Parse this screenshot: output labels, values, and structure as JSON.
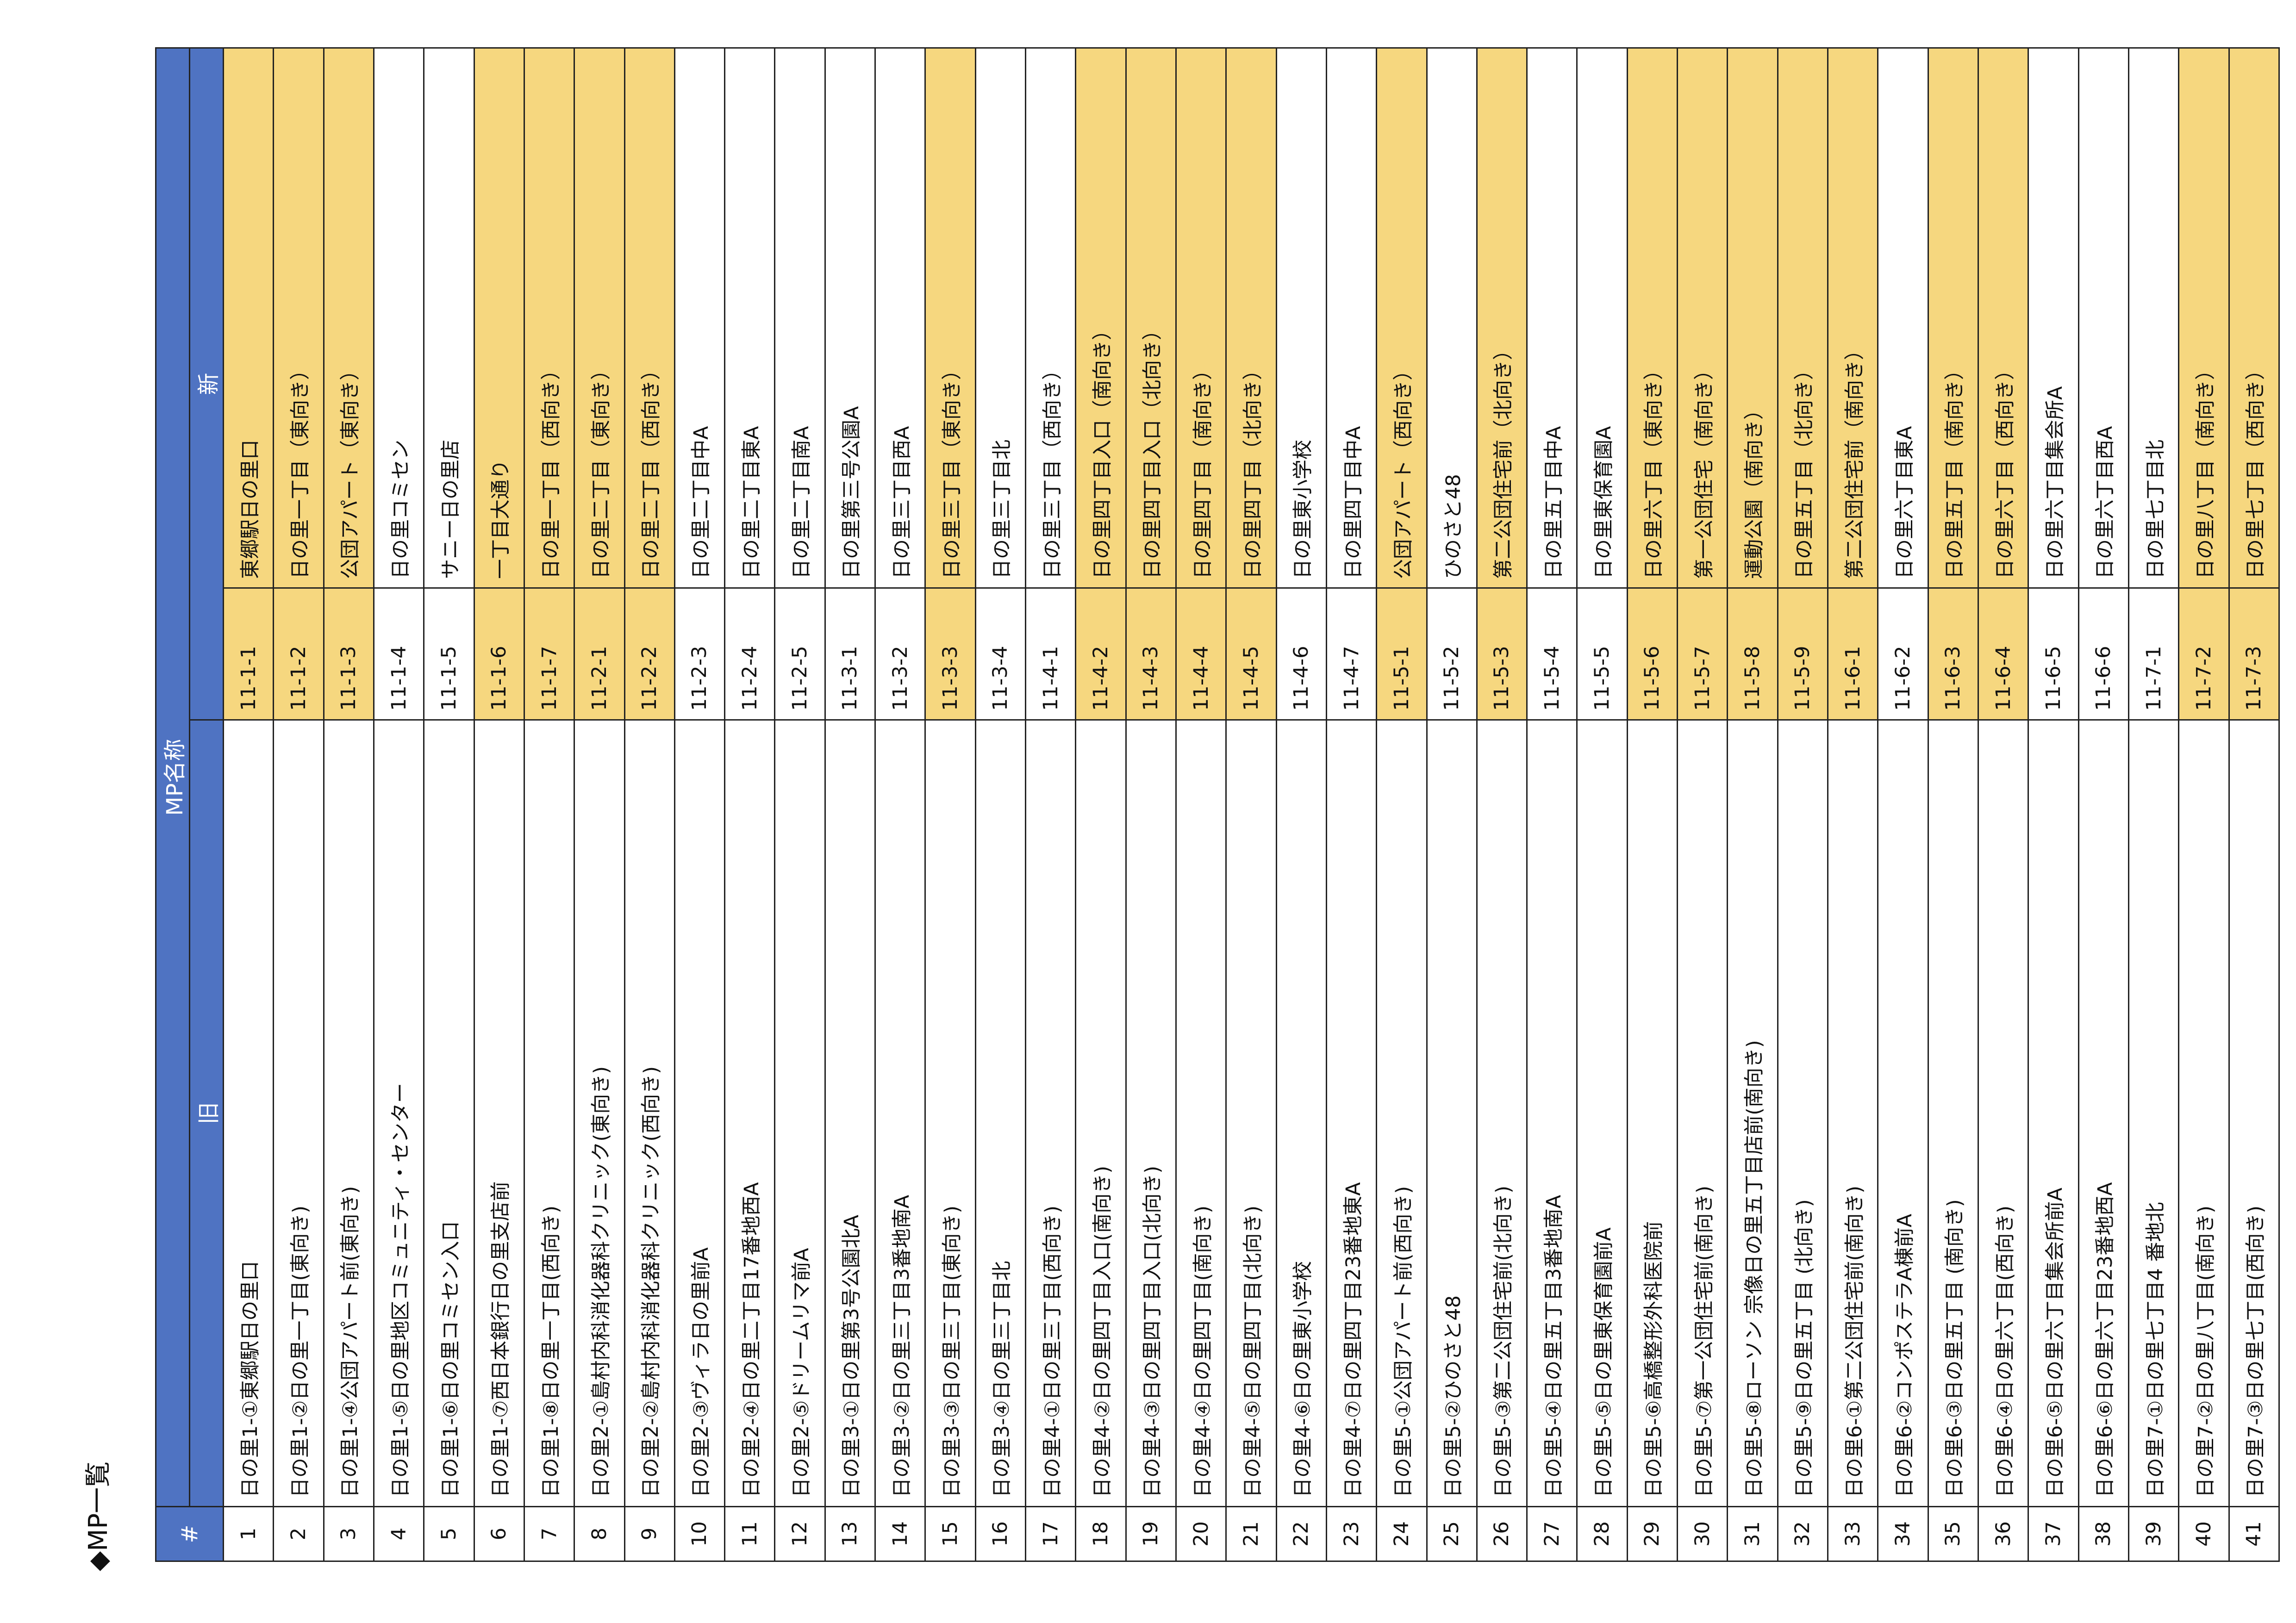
{
  "title": "◆MP一覧",
  "headers": {
    "num": "#",
    "mp_name": "MP名称",
    "old": "旧",
    "new": "新"
  },
  "colors": {
    "header_bg": "#4F73C2",
    "highlight": "#F6D77F"
  },
  "rows": [
    {
      "num": "1",
      "old": "日の里1-①東郷駅日の里口",
      "code": "11-1-1",
      "new": "東郷駅日の里口",
      "hl": true
    },
    {
      "num": "2",
      "old": "日の里1-②日の里一丁目(東向き)",
      "code": "11-1-2",
      "new": "日の里一丁目（東向き）",
      "hl": true
    },
    {
      "num": "3",
      "old": "日の里1-④公団アパート前(東向き)",
      "code": "11-1-3",
      "new": "公団アパート（東向き）",
      "hl": true
    },
    {
      "num": "4",
      "old": "日の里1-⑤日の里地区コミュニティ・センター",
      "code": "11-1-4",
      "new": "日の里コミセン",
      "hl": false
    },
    {
      "num": "5",
      "old": "日の里1-⑥日の里コミセン入口",
      "code": "11-1-5",
      "new": "サニー日の里店",
      "hl": false
    },
    {
      "num": "6",
      "old": "日の里1-⑦西日本銀行日の里支店前",
      "code": "11-1-6",
      "new": "一丁目大通り",
      "hl": true
    },
    {
      "num": "7",
      "old": "日の里1-⑧日の里一丁目(西向き)",
      "code": "11-1-7",
      "new": "日の里一丁目（西向き）",
      "hl": true
    },
    {
      "num": "8",
      "old": "日の里2-①島村内科消化器科クリニック(東向き)",
      "code": "11-2-1",
      "new": "日の里二丁目（東向き）",
      "hl": true
    },
    {
      "num": "9",
      "old": "日の里2-②島村内科消化器科クリニック(西向き)",
      "code": "11-2-2",
      "new": "日の里二丁目（西向き）",
      "hl": true
    },
    {
      "num": "10",
      "old": "日の里2-③ヴィラ日の里前A",
      "code": "11-2-3",
      "new": "日の里二丁目中A",
      "hl": false
    },
    {
      "num": "11",
      "old": "日の里2-④日の里二丁目17番地西A",
      "code": "11-2-4",
      "new": "日の里二丁目東A",
      "hl": false
    },
    {
      "num": "12",
      "old": "日の里2-⑤ドリームリマ前A",
      "code": "11-2-5",
      "new": "日の里二丁目南A",
      "hl": false
    },
    {
      "num": "13",
      "old": "日の里3-①日の里第3号公園北A",
      "code": "11-3-1",
      "new": "日の里第三号公園A",
      "hl": false
    },
    {
      "num": "14",
      "old": "日の里3-②日の里三丁目3番地南A",
      "code": "11-3-2",
      "new": "日の里三丁目西A",
      "hl": false
    },
    {
      "num": "15",
      "old": "日の里3-③日の里三丁目(東向き)",
      "code": "11-3-3",
      "new": "日の里三丁目（東向き）",
      "hl": true
    },
    {
      "num": "16",
      "old": "日の里3-④日の里三丁目北",
      "code": "11-3-4",
      "new": "日の里三丁目北",
      "hl": false
    },
    {
      "num": "17",
      "old": "日の里4-①日の里三丁目(西向き)",
      "code": "11-4-1",
      "new": "日の里三丁目（西向き）",
      "hl": false
    },
    {
      "num": "18",
      "old": "日の里4-②日の里四丁目入口(南向き)",
      "code": "11-4-2",
      "new": "日の里四丁目入口（南向き）",
      "hl": true
    },
    {
      "num": "19",
      "old": "日の里4-③日の里四丁目入口(北向き)",
      "code": "11-4-3",
      "new": "日の里四丁目入口（北向き）",
      "hl": true
    },
    {
      "num": "20",
      "old": "日の里4-④日の里四丁目(南向き)",
      "code": "11-4-4",
      "new": "日の里四丁目（南向き）",
      "hl": true
    },
    {
      "num": "21",
      "old": "日の里4-⑤日の里四丁目(北向き)",
      "code": "11-4-5",
      "new": "日の里四丁目（北向き）",
      "hl": true
    },
    {
      "num": "22",
      "old": "日の里4-⑥日の里東小学校",
      "code": "11-4-6",
      "new": "日の里東小学校",
      "hl": false
    },
    {
      "num": "23",
      "old": "日の里4-⑦日の里四丁目23番地東A",
      "code": "11-4-7",
      "new": "日の里四丁目中A",
      "hl": false
    },
    {
      "num": "24",
      "old": "日の里5-①公団アパート前(西向き)",
      "code": "11-5-1",
      "new": "公団アパート（西向き）",
      "hl": true
    },
    {
      "num": "25",
      "old": "日の里5-②ひのさと48",
      "code": "11-5-2",
      "new": "ひのさと48",
      "hl": false
    },
    {
      "num": "26",
      "old": "日の里5-③第二公団住宅前(北向き)",
      "code": "11-5-3",
      "new": "第二公団住宅前（北向き）",
      "hl": true
    },
    {
      "num": "27",
      "old": "日の里5-④日の里五丁目3番地南A",
      "code": "11-5-4",
      "new": "日の里五丁目中A",
      "hl": false
    },
    {
      "num": "28",
      "old": "日の里5-⑤日の里東保育園前A",
      "code": "11-5-5",
      "new": "日の里東保育園A",
      "hl": false
    },
    {
      "num": "29",
      "old": "日の里5-⑥高橋整形外科医院前",
      "code": "11-5-6",
      "new": "日の里六丁目（東向き）",
      "hl": true
    },
    {
      "num": "30",
      "old": "日の里5-⑦第一公団住宅前(南向き)",
      "code": "11-5-7",
      "new": "第一公団住宅（南向き）",
      "hl": true
    },
    {
      "num": "31",
      "old": "日の里5-⑧ローソン 宗像日の里五丁目店前(南向き)",
      "code": "11-5-8",
      "new": "運動公園（南向き）",
      "hl": true
    },
    {
      "num": "32",
      "old": "日の里5-⑨日の里五丁目 (北向き)",
      "code": "11-5-9",
      "new": "日の里五丁目（北向き）",
      "hl": true
    },
    {
      "num": "33",
      "old": "日の里6-①第二公団住宅前(南向き)",
      "code": "11-6-1",
      "new": "第二公団住宅前（南向き）",
      "hl": true
    },
    {
      "num": "34",
      "old": "日の里6-②コンポステラA棟前A",
      "code": "11-6-2",
      "new": "日の里六丁目東A",
      "hl": false
    },
    {
      "num": "35",
      "old": "日の里6-③日の里五丁目 (南向き)",
      "code": "11-6-3",
      "new": "日の里五丁目（南向き）",
      "hl": true
    },
    {
      "num": "36",
      "old": "日の里6-④日の里六丁目(西向き)",
      "code": "11-6-4",
      "new": "日の里六丁目（西向き）",
      "hl": true
    },
    {
      "num": "37",
      "old": "日の里6-⑤日の里六丁目集会所前A",
      "code": "11-6-5",
      "new": "日の里六丁目集会所A",
      "hl": false
    },
    {
      "num": "38",
      "old": "日の里6-⑥日の里六丁目23番地西A",
      "code": "11-6-6",
      "new": "日の里六丁目西A",
      "hl": false
    },
    {
      "num": "39",
      "old": "日の里7-①日の里七丁目4 番地北",
      "code": "11-7-1",
      "new": "日の里七丁目北",
      "hl": false
    },
    {
      "num": "40",
      "old": "日の里7-②日の里八丁目(南向き)",
      "code": "11-7-2",
      "new": "日の里八丁目（南向き）",
      "hl": true
    },
    {
      "num": "41",
      "old": "日の里7-③日の里七丁目(西向き)",
      "code": "11-7-3",
      "new": "日の里七丁目（西向き）",
      "hl": true
    }
  ]
}
